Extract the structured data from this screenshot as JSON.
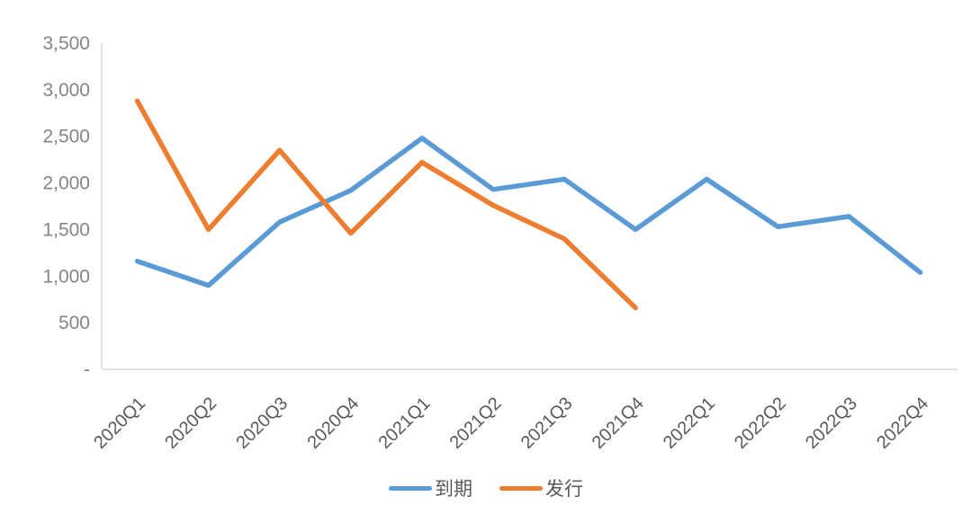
{
  "chart_data": {
    "type": "line",
    "categories": [
      "2020Q1",
      "2020Q2",
      "2020Q3",
      "2020Q4",
      "2021Q1",
      "2021Q2",
      "2021Q3",
      "2021Q4",
      "2022Q1",
      "2022Q2",
      "2022Q3",
      "2022Q4"
    ],
    "series": [
      {
        "name": "到期",
        "color": "#5B9BD5",
        "values": [
          1160,
          900,
          1580,
          1920,
          2480,
          1930,
          2040,
          1500,
          2040,
          1530,
          1640,
          1040
        ]
      },
      {
        "name": "发行",
        "color": "#ED7D31",
        "values": [
          2880,
          1500,
          2350,
          1460,
          2220,
          1760,
          1400,
          660
        ]
      }
    ],
    "ylim": [
      0,
      3500
    ],
    "y_ticks": [
      {
        "value": 0,
        "label": "-"
      },
      {
        "value": 500,
        "label": "500"
      },
      {
        "value": 1000,
        "label": "1,000"
      },
      {
        "value": 1500,
        "label": "1,500"
      },
      {
        "value": 2000,
        "label": "2,000"
      },
      {
        "value": 2500,
        "label": "2,500"
      },
      {
        "value": 3000,
        "label": "3,000"
      },
      {
        "value": 3500,
        "label": "3,500"
      }
    ],
    "grid": false,
    "legend_position": "bottom",
    "x_label_rotation": -45
  },
  "style": {
    "axis_line_color": "#D9D9D9",
    "y_tick_text_color": "#858585",
    "x_tick_text_color": "#595959",
    "legend_text_color": "#595959",
    "line_width": 5.5
  }
}
